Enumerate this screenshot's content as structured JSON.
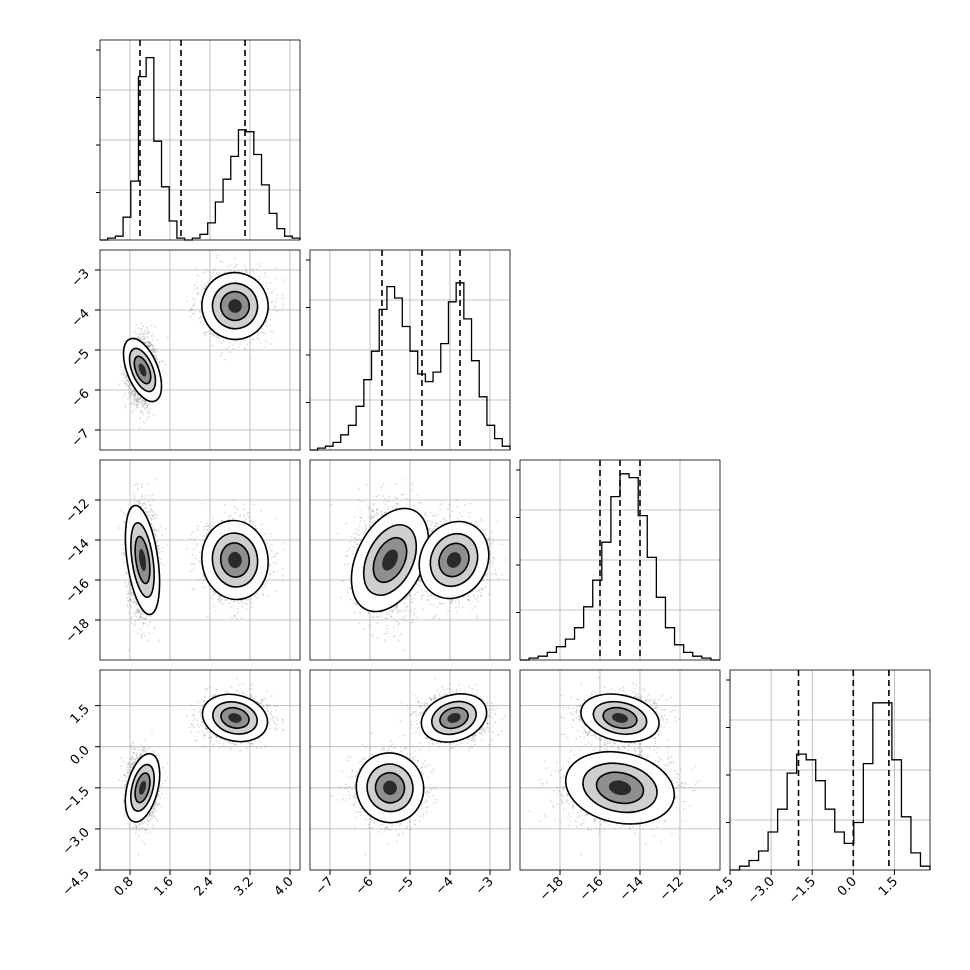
{
  "chart_data": {
    "type": "corner",
    "title": "",
    "parameters": [
      {
        "range": [
          0.2,
          4.2
        ],
        "ticks": [
          0.8,
          1.6,
          2.4,
          3.2,
          4.0
        ],
        "tick_labels": [
          "0.8",
          "1.6",
          "2.4",
          "3.2",
          "4.0"
        ]
      },
      {
        "range": [
          -7.5,
          -2.5
        ],
        "ticks": [
          -7,
          -6,
          -5,
          -4,
          -3
        ],
        "tick_labels": [
          "−7",
          "−6",
          "−5",
          "−4",
          "−3"
        ]
      },
      {
        "range": [
          -20,
          -10
        ],
        "ticks": [
          -18,
          -16,
          -14,
          -12
        ],
        "tick_labels": [
          "−18",
          "−16",
          "−14",
          "−12"
        ]
      },
      {
        "range": [
          -4.5,
          2.8
        ],
        "ticks": [
          -4.5,
          -3.0,
          -1.5,
          0.0,
          1.5
        ],
        "tick_labels": [
          "−4.5",
          "−3.0",
          "−1.5",
          "0.0",
          "1.5"
        ]
      }
    ],
    "histograms": [
      {
        "bins": [
          0.2,
          4.2
        ],
        "counts": [
          0.0,
          0.01,
          0.02,
          0.12,
          0.31,
          0.86,
          0.96,
          0.52,
          0.28,
          0.1,
          0.01,
          0.0,
          0.01,
          0.03,
          0.09,
          0.2,
          0.32,
          0.44,
          0.58,
          0.57,
          0.45,
          0.29,
          0.14,
          0.06,
          0.02,
          0.01
        ],
        "quantiles": [
          1.0,
          1.82,
          3.1
        ]
      },
      {
        "bins": [
          -7.5,
          -2.5
        ],
        "counts": [
          0.0,
          0.01,
          0.02,
          0.04,
          0.08,
          0.13,
          0.23,
          0.37,
          0.52,
          0.74,
          0.86,
          0.8,
          0.65,
          0.52,
          0.4,
          0.36,
          0.41,
          0.56,
          0.78,
          0.88,
          0.69,
          0.47,
          0.28,
          0.13,
          0.06,
          0.02
        ],
        "quantiles": [
          -5.7,
          -4.7,
          -3.75
        ]
      },
      {
        "bins": [
          -20,
          -10
        ],
        "counts": [
          0.0,
          0.01,
          0.02,
          0.04,
          0.07,
          0.11,
          0.17,
          0.28,
          0.42,
          0.62,
          0.86,
          0.98,
          0.96,
          0.76,
          0.54,
          0.33,
          0.17,
          0.08,
          0.04,
          0.02,
          0.01,
          0.0
        ],
        "quantiles": [
          -16.0,
          -15.0,
          -14.0
        ]
      },
      {
        "bins": [
          -4.5,
          2.8
        ],
        "counts": [
          0.0,
          0.02,
          0.05,
          0.1,
          0.2,
          0.32,
          0.51,
          0.61,
          0.58,
          0.47,
          0.32,
          0.2,
          0.14,
          0.25,
          0.56,
          0.88,
          0.88,
          0.58,
          0.28,
          0.09,
          0.02
        ],
        "quantiles": [
          -2.0,
          0.0,
          1.3
        ]
      }
    ],
    "modes": [
      {
        "mean": [
          1.05,
          -5.5,
          -15.0,
          -1.5
        ],
        "sd": [
          0.14,
          0.38,
          1.25,
          0.58
        ],
        "weight": 0.5
      },
      {
        "mean": [
          2.9,
          -3.9,
          -15.0,
          1.05
        ],
        "sd": [
          0.3,
          0.38,
          0.9,
          0.38
        ],
        "weight": 0.5
      }
    ],
    "scatter_color": "#808080",
    "density_color": "#000000",
    "quantile_line_style": "dashed",
    "grid": true
  }
}
